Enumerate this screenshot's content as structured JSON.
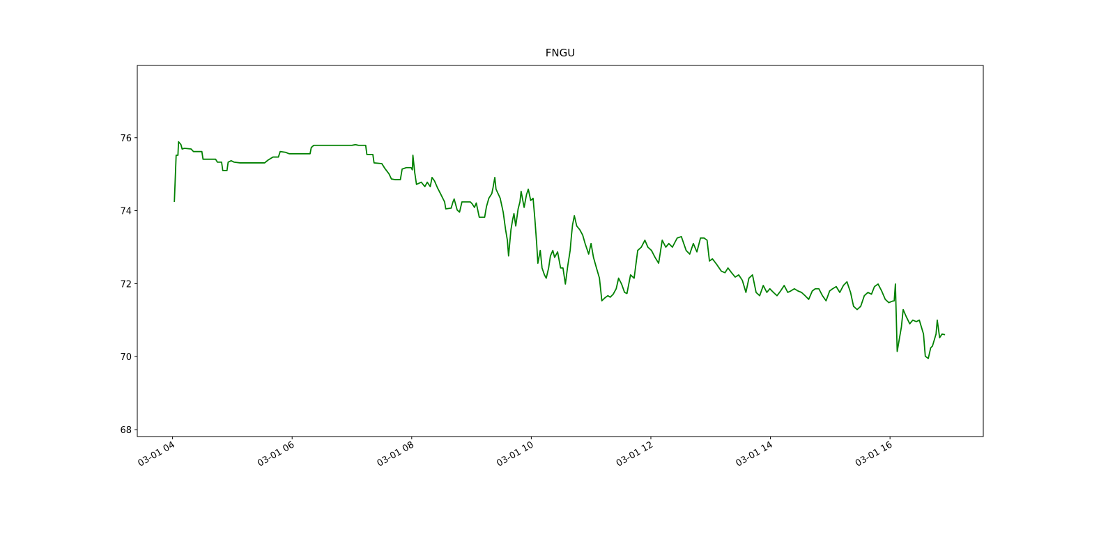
{
  "chart_data": {
    "type": "line",
    "title": "FNGU",
    "color": "#008000",
    "x": [
      4.03,
      4.06,
      4.09,
      4.1,
      4.14,
      4.16,
      4.2,
      4.31,
      4.35,
      4.49,
      4.51,
      4.72,
      4.75,
      4.82,
      4.84,
      4.91,
      4.93,
      4.98,
      5.03,
      5.13,
      5.54,
      5.6,
      5.68,
      5.77,
      5.8,
      5.89,
      5.95,
      6.3,
      6.32,
      6.36,
      7.0,
      7.06,
      7.11,
      7.23,
      7.25,
      7.35,
      7.37,
      7.5,
      7.55,
      7.62,
      7.66,
      7.72,
      7.81,
      7.84,
      7.91,
      7.99,
      8.01,
      8.02,
      8.05,
      8.08,
      8.16,
      8.22,
      8.26,
      8.31,
      8.34,
      8.38,
      8.43,
      8.48,
      8.55,
      8.57,
      8.66,
      8.69,
      8.71,
      8.76,
      8.8,
      8.84,
      8.98,
      9.01,
      9.05,
      9.08,
      9.13,
      9.22,
      9.25,
      9.29,
      9.34,
      9.36,
      9.39,
      9.41,
      9.48,
      9.53,
      9.57,
      9.6,
      9.62,
      9.66,
      9.69,
      9.71,
      9.74,
      9.78,
      9.81,
      9.83,
      9.88,
      9.92,
      9.95,
      9.99,
      10.03,
      10.06,
      10.09,
      10.11,
      10.15,
      10.18,
      10.22,
      10.25,
      10.29,
      10.32,
      10.36,
      10.39,
      10.44,
      10.49,
      10.53,
      10.57,
      10.61,
      10.65,
      10.67,
      10.69,
      10.72,
      10.76,
      10.81,
      10.86,
      10.9,
      10.96,
      11.0,
      11.04,
      11.09,
      11.14,
      11.18,
      11.23,
      11.28,
      11.32,
      11.37,
      11.42,
      11.46,
      11.51,
      11.56,
      11.6,
      11.66,
      11.72,
      11.78,
      11.84,
      11.9,
      11.95,
      12.01,
      12.07,
      12.13,
      12.19,
      12.25,
      12.3,
      12.36,
      12.44,
      12.51,
      12.59,
      12.65,
      12.71,
      12.77,
      12.83,
      12.89,
      12.94,
      12.98,
      13.03,
      13.1,
      13.18,
      13.24,
      13.29,
      13.35,
      13.41,
      13.47,
      13.53,
      13.59,
      13.64,
      13.7,
      13.76,
      13.82,
      13.88,
      13.94,
      13.99,
      14.05,
      14.11,
      14.17,
      14.23,
      14.29,
      14.34,
      14.4,
      14.46,
      14.52,
      14.58,
      14.64,
      14.7,
      14.75,
      14.81,
      14.87,
      14.93,
      14.99,
      15.04,
      15.1,
      15.16,
      15.22,
      15.28,
      15.34,
      15.39,
      15.45,
      15.51,
      15.57,
      15.63,
      15.69,
      15.74,
      15.8,
      15.86,
      15.92,
      15.98,
      16.04,
      16.07,
      16.09,
      16.12,
      16.15,
      16.19,
      16.22,
      16.27,
      16.33,
      16.38,
      16.44,
      16.49,
      16.56,
      16.59,
      16.64,
      16.68,
      16.71,
      16.77,
      16.79,
      16.83,
      16.87,
      16.92
    ],
    "values": [
      74.24,
      75.52,
      75.52,
      75.89,
      75.81,
      75.69,
      75.71,
      75.69,
      75.62,
      75.62,
      75.41,
      75.41,
      75.33,
      75.33,
      75.1,
      75.1,
      75.33,
      75.37,
      75.33,
      75.31,
      75.31,
      75.39,
      75.47,
      75.47,
      75.62,
      75.6,
      75.56,
      75.56,
      75.73,
      75.79,
      75.79,
      75.81,
      75.79,
      75.79,
      75.54,
      75.54,
      75.31,
      75.29,
      75.16,
      75.01,
      74.87,
      74.85,
      74.85,
      75.14,
      75.18,
      75.18,
      75.12,
      75.52,
      75.05,
      74.72,
      74.78,
      74.66,
      74.78,
      74.66,
      74.91,
      74.82,
      74.63,
      74.47,
      74.24,
      74.05,
      74.07,
      74.24,
      74.32,
      74.02,
      73.96,
      74.24,
      74.24,
      74.19,
      74.09,
      74.21,
      73.82,
      73.82,
      74.11,
      74.34,
      74.47,
      74.63,
      74.91,
      74.59,
      74.34,
      73.96,
      73.48,
      73.19,
      72.76,
      73.48,
      73.77,
      73.92,
      73.58,
      74.05,
      74.24,
      74.53,
      74.09,
      74.44,
      74.59,
      74.28,
      74.34,
      73.77,
      73.1,
      72.56,
      72.91,
      72.43,
      72.24,
      72.15,
      72.43,
      72.76,
      72.91,
      72.72,
      72.87,
      72.43,
      72.43,
      71.99,
      72.49,
      72.91,
      73.29,
      73.61,
      73.86,
      73.58,
      73.48,
      73.33,
      73.1,
      72.81,
      73.1,
      72.72,
      72.43,
      72.15,
      71.53,
      71.61,
      71.67,
      71.63,
      71.71,
      71.86,
      72.15,
      71.99,
      71.76,
      71.73,
      72.24,
      72.15,
      72.91,
      73.0,
      73.19,
      73.0,
      72.91,
      72.72,
      72.56,
      73.19,
      73.0,
      73.1,
      73.0,
      73.25,
      73.29,
      72.91,
      72.81,
      73.1,
      72.87,
      73.25,
      73.25,
      73.19,
      72.62,
      72.68,
      72.53,
      72.34,
      72.3,
      72.43,
      72.3,
      72.18,
      72.24,
      72.09,
      71.76,
      72.15,
      72.24,
      71.76,
      71.67,
      71.95,
      71.76,
      71.86,
      71.76,
      71.67,
      71.8,
      71.95,
      71.76,
      71.8,
      71.86,
      71.8,
      71.76,
      71.67,
      71.57,
      71.8,
      71.86,
      71.86,
      71.67,
      71.53,
      71.8,
      71.86,
      71.92,
      71.76,
      71.95,
      72.05,
      71.76,
      71.38,
      71.29,
      71.38,
      71.67,
      71.76,
      71.71,
      71.92,
      71.99,
      71.8,
      71.57,
      71.48,
      71.52,
      71.53,
      71.99,
      70.14,
      70.43,
      70.81,
      71.29,
      71.1,
      70.9,
      71.0,
      70.96,
      71.0,
      70.62,
      70.01,
      69.95,
      70.24,
      70.29,
      70.62,
      71.0,
      70.52,
      70.62,
      70.6
    ],
    "xlim": [
      3.41,
      17.56
    ],
    "xticks": [
      {
        "value": 4,
        "label": "03-01 04"
      },
      {
        "value": 6,
        "label": "03-01 06"
      },
      {
        "value": 8,
        "label": "03-01 08"
      },
      {
        "value": 10,
        "label": "03-01 10"
      },
      {
        "value": 12,
        "label": "03-01 12"
      },
      {
        "value": 14,
        "label": "03-01 14"
      },
      {
        "value": 16,
        "label": "03-01 16"
      }
    ],
    "ylim": [
      67.81,
      77.98
    ],
    "yticks": [
      68,
      70,
      72,
      74,
      76
    ]
  }
}
